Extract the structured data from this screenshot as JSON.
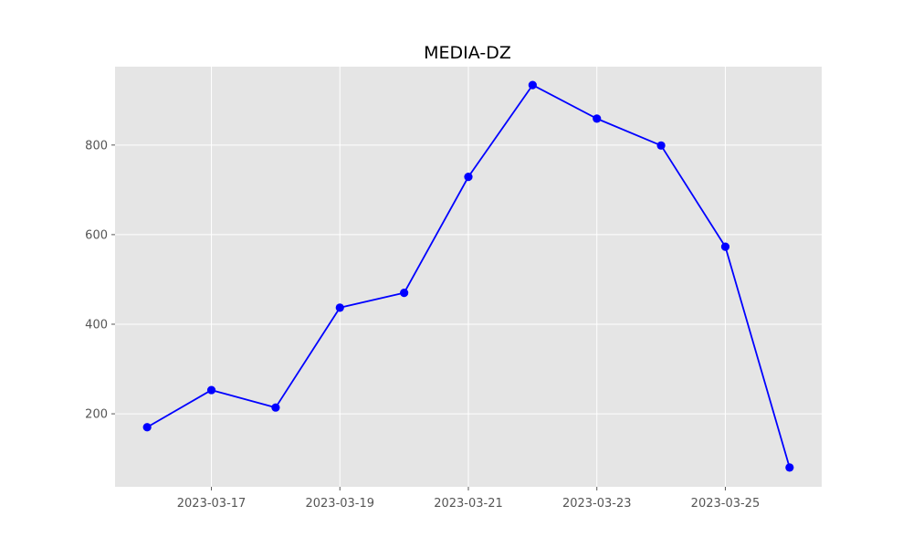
{
  "chart_data": {
    "type": "line",
    "title": "MEDIA-DZ",
    "xlabel": "",
    "ylabel": "",
    "x": [
      "2023-03-16",
      "2023-03-17",
      "2023-03-18",
      "2023-03-19",
      "2023-03-20",
      "2023-03-21",
      "2023-03-22",
      "2023-03-23",
      "2023-03-24",
      "2023-03-25",
      "2023-03-26"
    ],
    "series": [
      {
        "values": [
          170,
          253,
          214,
          437,
          470,
          729,
          934,
          859,
          799,
          573,
          80
        ]
      }
    ],
    "xlim": [
      "2023-03-15T12:00",
      "2023-03-26T12:00"
    ],
    "ylim": [
      37,
      975
    ],
    "x_ticks": [
      "2023-03-17",
      "2023-03-19",
      "2023-03-21",
      "2023-03-23",
      "2023-03-25"
    ],
    "y_ticks": [
      200,
      400,
      600,
      800
    ],
    "grid": true,
    "style": {
      "plot_background": "#e5e5e5",
      "grid_color": "#ffffff",
      "line_color": "#0000ff",
      "marker_color": "#0000ff",
      "tick_label_color": "#555555"
    }
  }
}
